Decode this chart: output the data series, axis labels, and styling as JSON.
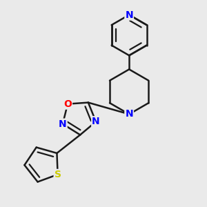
{
  "bg_color": "#eaeaea",
  "bond_color": "#1a1a1a",
  "N_color": "#0000ff",
  "O_color": "#ff0000",
  "S_color": "#cccc00",
  "line_width": 1.8,
  "font_size": 10,
  "figsize": [
    3.0,
    3.0
  ],
  "dpi": 100,
  "xlim": [
    0.05,
    0.95
  ],
  "ylim": [
    0.02,
    0.98
  ]
}
